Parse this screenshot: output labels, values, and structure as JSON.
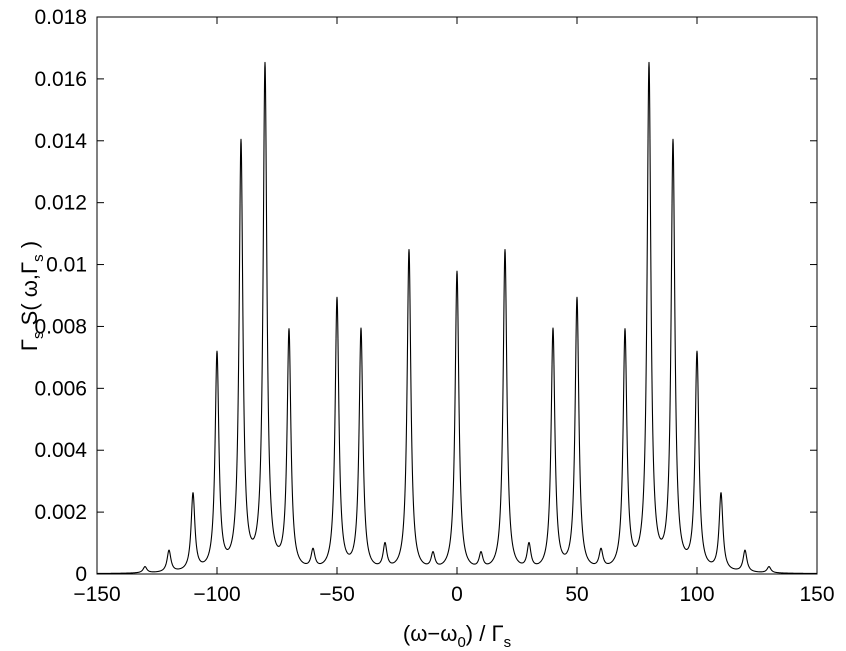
{
  "chart_data": {
    "type": "line",
    "title": "",
    "xlabel": {
      "pre": "(ω−ω",
      "sub1": "0",
      "mid": ") / Γ",
      "sub2": "s"
    },
    "ylabel": {
      "pre": "Γ",
      "sub1": "s",
      "mid": " S( ω,Γ",
      "sub2": "s",
      "post": " )"
    },
    "xlim": [
      -150,
      150
    ],
    "ylim": [
      0,
      0.018
    ],
    "xticks": [
      "-150",
      "-100",
      "-50",
      "0",
      "50",
      "100",
      "150"
    ],
    "yticks": [
      "0",
      "0.002",
      "0.004",
      "0.006",
      "0.008",
      "0.01",
      "0.012",
      "0.014",
      "0.016",
      "0.018"
    ],
    "grid": false,
    "line_color": "#000000",
    "peak_half_width": 0.95,
    "series": [
      {
        "x": [
          -130,
          -120,
          -110,
          -100,
          -90,
          -80,
          -70,
          -60,
          -50,
          -40,
          -30,
          -20,
          -10,
          0,
          10,
          20,
          30,
          40,
          50,
          60,
          70,
          80,
          90,
          100,
          110,
          120,
          130
        ],
        "peak_values": [
          0.0002,
          0.0007,
          0.0025,
          0.007,
          0.0138,
          0.0163,
          0.0077,
          0.0006,
          0.0088,
          0.0078,
          0.0008,
          0.0104,
          0.0005,
          0.0097,
          0.0005,
          0.0104,
          0.0008,
          0.0078,
          0.0088,
          0.0006,
          0.0077,
          0.0163,
          0.0138,
          0.007,
          0.0025,
          0.0007,
          0.0002
        ]
      }
    ]
  }
}
